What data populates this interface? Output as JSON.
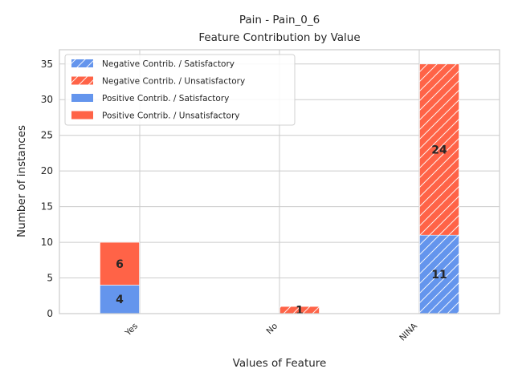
{
  "chart_data": {
    "type": "bar",
    "stacked": true,
    "title": "Pain - Pain_0_6",
    "subtitle": "Feature Contribution by Value",
    "xlabel": "Values of Feature",
    "ylabel": "Number of instances",
    "categories": [
      "Yes",
      "No",
      "NINA"
    ],
    "ylim": [
      0,
      37
    ],
    "yticks": [
      0,
      5,
      10,
      15,
      20,
      25,
      30,
      35
    ],
    "grid": true,
    "legend_position": "top-left",
    "series": [
      {
        "name": "Negative Contrib. / Satisfactory",
        "color": "#6495ed",
        "hatch": true,
        "group": "negative",
        "values": [
          0,
          0,
          11
        ]
      },
      {
        "name": "Negative Contrib. / Unsatisfactory",
        "color": "#ff6347",
        "hatch": true,
        "group": "negative",
        "values": [
          0,
          1,
          24
        ]
      },
      {
        "name": "Positive Contrib. / Satisfactory",
        "color": "#6495ed",
        "hatch": false,
        "group": "positive",
        "values": [
          4,
          0,
          0
        ]
      },
      {
        "name": "Positive Contrib. / Unsatisfactory",
        "color": "#ff6347",
        "hatch": false,
        "group": "positive",
        "values": [
          6,
          0,
          0
        ]
      }
    ]
  }
}
